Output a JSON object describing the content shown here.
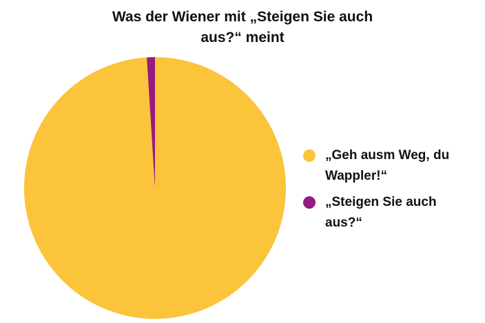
{
  "chart_data": {
    "type": "pie",
    "title": "Was der Wiener mit „Steigen Sie auch aus?“ meint",
    "categories": [
      "„Geh ausm Weg, du Wappler!“",
      "„Steigen Sie auch aus?“"
    ],
    "values": [
      99,
      1
    ],
    "colors": [
      "#fbc43a",
      "#951b81"
    ],
    "legend": "right"
  }
}
